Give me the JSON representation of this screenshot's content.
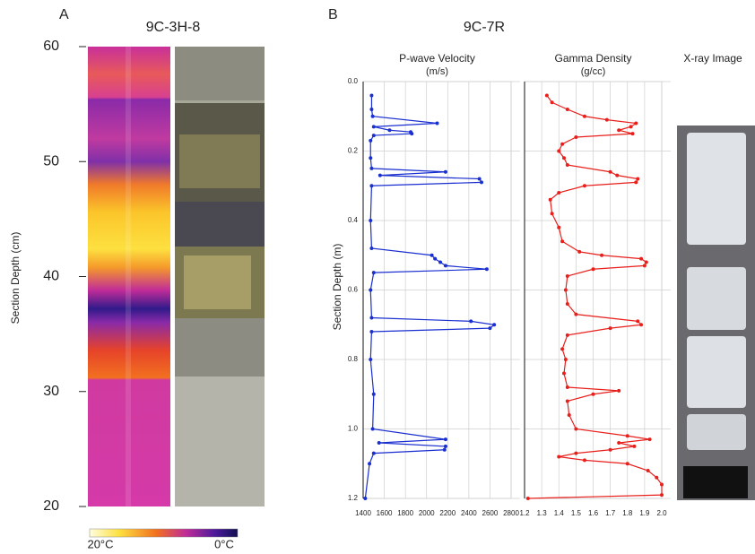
{
  "chart_data": [
    {
      "type": "image",
      "panel_label": "A",
      "title": "9C-3H-8",
      "ylabel": "Section Depth (cm)",
      "ylim": [
        20,
        60
      ],
      "yticks": [
        20,
        30,
        40,
        50,
        60
      ],
      "colorbar_labels": [
        "20°C",
        "0°C"
      ]
    },
    {
      "type": "line",
      "panel_label": "B",
      "suptitle": "9C-7R",
      "title": "P-wave Velocity",
      "subtitle": "(m/s)",
      "ylabel": "Section Depth (m)",
      "xlim": [
        1400,
        2800
      ],
      "xticks": [
        1400,
        1600,
        1800,
        2000,
        2200,
        2400,
        2600,
        2800
      ],
      "ylim": [
        0,
        1.2
      ],
      "y_inverted": true,
      "yticks": [
        {
          "value": 0,
          "label": "0.0"
        },
        0.2,
        0.4,
        0.6,
        0.8,
        {
          "value": 1,
          "label": "1.0"
        },
        1.2
      ],
      "grid": true,
      "series": [
        {
          "color": "#1a2fd0",
          "markers": true,
          "y": [
            0.04,
            0.08,
            0.1,
            0.12,
            0.13,
            0.14,
            0.145,
            0.15,
            0.155,
            0.17,
            0.22,
            0.25,
            0.26,
            0.27,
            0.28,
            0.29,
            0.3,
            0.4,
            0.48,
            0.5,
            0.51,
            0.52,
            0.53,
            0.54,
            0.55,
            0.6,
            0.68,
            0.69,
            0.7,
            0.71,
            0.72,
            0.8,
            0.9,
            1.0,
            1.03,
            1.04,
            1.05,
            1.06,
            1.07,
            1.1,
            1.2
          ],
          "values": [
            1480,
            1480,
            1490,
            2100,
            1500,
            1650,
            1850,
            1860,
            1500,
            1470,
            1470,
            1480,
            2180,
            1560,
            2500,
            2520,
            1480,
            1470,
            1480,
            2050,
            2080,
            2130,
            2180,
            2570,
            1500,
            1470,
            1480,
            2420,
            2640,
            2600,
            1480,
            1470,
            1500,
            1490,
            2180,
            1550,
            2180,
            2170,
            1500,
            1460,
            1420
          ]
        }
      ]
    },
    {
      "type": "line",
      "title": "Gamma Density",
      "subtitle": "(g/cc)",
      "xlim": [
        1.2,
        2.0
      ],
      "xticks": [
        1.2,
        1.3,
        1.4,
        1.5,
        1.6,
        1.7,
        1.8,
        1.9,
        {
          "value": 2,
          "label": "2.0"
        }
      ],
      "ylim": [
        0,
        1.2
      ],
      "y_inverted": true,
      "yticks": [
        0,
        0.2,
        0.4,
        0.6,
        0.8,
        1,
        1.2
      ],
      "grid": true,
      "series": [
        {
          "color": "#e8201c",
          "markers": true,
          "y": [
            0.04,
            0.06,
            0.08,
            0.1,
            0.11,
            0.12,
            0.13,
            0.14,
            0.15,
            0.16,
            0.18,
            0.2,
            0.22,
            0.24,
            0.26,
            0.27,
            0.28,
            0.29,
            0.3,
            0.32,
            0.34,
            0.38,
            0.42,
            0.46,
            0.49,
            0.5,
            0.51,
            0.52,
            0.53,
            0.54,
            0.56,
            0.6,
            0.64,
            0.67,
            0.69,
            0.7,
            0.71,
            0.73,
            0.77,
            0.8,
            0.84,
            0.88,
            0.89,
            0.9,
            0.92,
            0.96,
            1.0,
            1.02,
            1.03,
            1.04,
            1.05,
            1.06,
            1.07,
            1.08,
            1.09,
            1.1,
            1.12,
            1.14,
            1.16,
            1.19,
            1.2
          ],
          "values": [
            1.33,
            1.36,
            1.45,
            1.55,
            1.68,
            1.85,
            1.82,
            1.75,
            1.83,
            1.5,
            1.42,
            1.4,
            1.43,
            1.45,
            1.7,
            1.74,
            1.86,
            1.85,
            1.55,
            1.4,
            1.35,
            1.36,
            1.4,
            1.42,
            1.52,
            1.65,
            1.88,
            1.91,
            1.9,
            1.6,
            1.45,
            1.44,
            1.45,
            1.5,
            1.86,
            1.88,
            1.7,
            1.45,
            1.42,
            1.44,
            1.43,
            1.45,
            1.75,
            1.6,
            1.45,
            1.46,
            1.5,
            1.8,
            1.93,
            1.75,
            1.84,
            1.7,
            1.5,
            1.4,
            1.55,
            1.8,
            1.92,
            1.97,
            2.0,
            2.0,
            1.22
          ]
        }
      ]
    },
    {
      "type": "image",
      "title": "X-ray Image"
    }
  ]
}
